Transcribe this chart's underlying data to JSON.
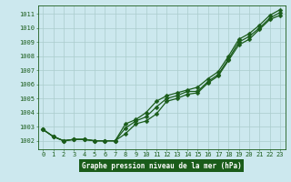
{
  "title": "Graphe pression niveau de la mer (hPa)",
  "bg_color": "#cce8ee",
  "grid_color": "#aacccc",
  "line_color": "#1a5c1a",
  "label_bg": "#1a5c1a",
  "label_fg": "#ffffff",
  "xlim": [
    -0.5,
    23.5
  ],
  "ylim": [
    1001.4,
    1011.6
  ],
  "yticks": [
    1002,
    1003,
    1004,
    1005,
    1006,
    1007,
    1008,
    1009,
    1010,
    1011
  ],
  "xticks": [
    0,
    1,
    2,
    3,
    4,
    5,
    6,
    7,
    8,
    9,
    10,
    11,
    12,
    13,
    14,
    15,
    16,
    17,
    18,
    19,
    20,
    21,
    22,
    23
  ],
  "line1_y": [
    1002.8,
    1002.3,
    1002.0,
    1002.1,
    1002.1,
    1002.0,
    1002.0,
    1002.0,
    1002.5,
    1003.2,
    1003.4,
    1003.9,
    1004.8,
    1005.0,
    1005.3,
    1005.4,
    1006.1,
    1006.6,
    1007.7,
    1008.8,
    1009.2,
    1009.9,
    1010.6,
    1010.9
  ],
  "line2_y": [
    1002.8,
    1002.3,
    1002.0,
    1002.1,
    1002.1,
    1002.0,
    1002.0,
    1002.0,
    1002.9,
    1003.4,
    1003.7,
    1004.4,
    1005.0,
    1005.2,
    1005.5,
    1005.5,
    1006.2,
    1006.7,
    1007.8,
    1009.0,
    1009.4,
    1010.0,
    1010.7,
    1011.1
  ],
  "line3_y": [
    1002.8,
    1002.3,
    1002.0,
    1002.1,
    1002.1,
    1002.0,
    1002.0,
    1002.0,
    1003.2,
    1003.5,
    1004.0,
    1004.8,
    1005.2,
    1005.4,
    1005.6,
    1005.8,
    1006.4,
    1006.9,
    1008.0,
    1009.2,
    1009.6,
    1010.2,
    1010.9,
    1011.3
  ],
  "tick_fontsize": 5.0,
  "label_fontsize": 5.5,
  "linewidth": 0.9,
  "markersize": 2.5
}
